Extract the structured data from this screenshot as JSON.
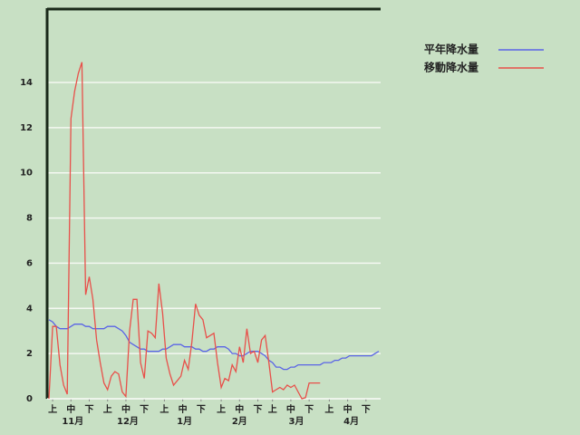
{
  "chart_data": {
    "type": "line",
    "x": [
      0,
      2,
      4,
      6,
      8,
      10,
      12,
      14,
      16,
      18,
      20,
      22,
      24,
      26,
      28,
      30,
      32,
      34,
      36,
      38,
      40,
      42,
      44,
      46,
      48,
      50,
      52,
      54,
      56,
      58,
      60,
      62,
      64,
      66,
      68,
      70,
      72,
      74,
      76,
      78,
      80,
      82,
      84,
      86,
      88,
      90,
      92,
      94,
      96,
      98,
      100,
      102,
      104,
      106,
      108,
      110,
      112,
      114,
      116,
      118,
      120,
      122,
      124,
      126,
      128,
      130,
      132,
      134,
      136,
      138,
      140,
      142,
      144,
      146,
      148,
      150,
      152,
      154,
      156,
      158,
      160,
      162,
      164,
      166,
      168,
      170,
      172,
      174,
      176,
      178,
      180
    ],
    "series": [
      {
        "name": "平年降水量",
        "color": "#5a64e6",
        "values": [
          3.5,
          3.4,
          3.2,
          3.1,
          3.1,
          3.1,
          3.2,
          3.3,
          3.3,
          3.3,
          3.2,
          3.2,
          3.1,
          3.1,
          3.1,
          3.1,
          3.2,
          3.2,
          3.2,
          3.1,
          3.0,
          2.8,
          2.5,
          2.4,
          2.3,
          2.2,
          2.2,
          2.1,
          2.1,
          2.1,
          2.1,
          2.2,
          2.2,
          2.3,
          2.4,
          2.4,
          2.4,
          2.3,
          2.3,
          2.3,
          2.2,
          2.2,
          2.1,
          2.1,
          2.2,
          2.2,
          2.3,
          2.3,
          2.3,
          2.2,
          2.0,
          2.0,
          1.9,
          1.9,
          2.0,
          2.1,
          2.1,
          2.1,
          2.0,
          1.9,
          1.7,
          1.6,
          1.4,
          1.4,
          1.3,
          1.3,
          1.4,
          1.4,
          1.5,
          1.5,
          1.5,
          1.5,
          1.5,
          1.5,
          1.5,
          1.6,
          1.6,
          1.6,
          1.7,
          1.7,
          1.8,
          1.8,
          1.9,
          1.9,
          1.9,
          1.9,
          1.9,
          1.9,
          1.9,
          2.0,
          2.1
        ]
      },
      {
        "name": "移動降水量",
        "color": "#e8504a",
        "values": [
          0,
          3.2,
          3.2,
          1.5,
          0.6,
          0.2,
          12.4,
          13.6,
          14.4,
          14.9,
          4.6,
          5.4,
          4.4,
          2.6,
          1.6,
          0.7,
          0.4,
          1.0,
          1.2,
          1.1,
          0.3,
          0.1,
          3.0,
          4.4,
          4.4,
          1.6,
          0.9,
          3.0,
          2.9,
          2.7,
          5.1,
          3.8,
          1.8,
          1.1,
          0.6,
          0.8,
          1.0,
          1.7,
          1.3,
          2.5,
          4.2,
          3.7,
          3.5,
          2.7,
          2.8,
          2.9,
          1.6,
          0.5,
          0.9,
          0.8,
          1.5,
          1.2,
          2.3,
          1.6,
          3.1,
          2.0,
          2.1,
          1.6,
          2.6,
          2.8,
          1.6,
          0.3,
          0.4,
          0.5,
          0.4,
          0.6,
          0.5,
          0.6,
          0.3,
          0.0,
          0.05,
          0.7,
          0.7,
          0.7,
          0.7,
          null,
          null,
          null,
          null,
          null,
          null,
          null,
          null,
          null,
          null,
          null,
          null,
          null,
          null,
          null,
          null
        ]
      }
    ],
    "xlim": [
      -1,
      181
    ],
    "xticks": [
      {
        "value": 2,
        "label": "上"
      },
      {
        "value": 12,
        "label": "中"
      },
      {
        "value": 22,
        "label": "下"
      },
      {
        "value": 32,
        "label": "上"
      },
      {
        "value": 42,
        "label": "中"
      },
      {
        "value": 52,
        "label": "下"
      },
      {
        "value": 63,
        "label": "上"
      },
      {
        "value": 73,
        "label": "中"
      },
      {
        "value": 83,
        "label": "下"
      },
      {
        "value": 94,
        "label": "上"
      },
      {
        "value": 104,
        "label": "中"
      },
      {
        "value": 114,
        "label": "下"
      },
      {
        "value": 122,
        "label": "上"
      },
      {
        "value": 132,
        "label": "中"
      },
      {
        "value": 142,
        "label": "下"
      },
      {
        "value": 153,
        "label": "上"
      },
      {
        "value": 163,
        "label": "中"
      },
      {
        "value": 173,
        "label": "下"
      }
    ],
    "month_ticks": [
      {
        "value": 13,
        "label": "11月"
      },
      {
        "value": 43,
        "label": "12月"
      },
      {
        "value": 74,
        "label": "1月"
      },
      {
        "value": 104,
        "label": "2月"
      },
      {
        "value": 135,
        "label": "3月"
      },
      {
        "value": 165,
        "label": "4月"
      }
    ],
    "ylim": [
      0,
      17.25
    ],
    "yticks": [
      0,
      2,
      4,
      6,
      8,
      10,
      12,
      14
    ],
    "grid": true
  }
}
